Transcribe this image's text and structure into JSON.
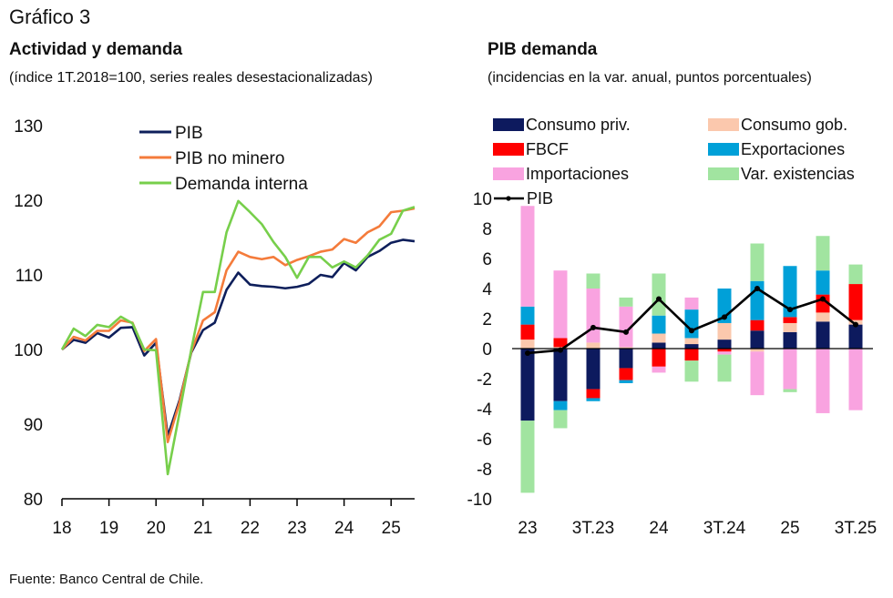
{
  "figure_label": "Gráfico 3",
  "source": "Fuente: Banco Central de Chile.",
  "chart_data": [
    {
      "type": "line",
      "title": "Actividad y demanda",
      "subtitle": "(índice 1T.2018=100, series reales desestacionalizadas)",
      "xlabel": "",
      "ylabel": "",
      "ylim": [
        80,
        130
      ],
      "yticks": [
        80,
        90,
        100,
        110,
        120,
        130
      ],
      "xticks": [
        "18",
        "19",
        "20",
        "21",
        "22",
        "23",
        "24",
        "25"
      ],
      "x_start": "1T.2018",
      "frequency": "quarterly",
      "legend_position": "top-center",
      "grid": false,
      "series": [
        {
          "name": "PIB",
          "color": "#0e1f5b",
          "values": [
            100.0,
            101.3,
            100.9,
            102.2,
            101.6,
            102.9,
            103.0,
            99.2,
            100.9,
            88.4,
            93.2,
            99.6,
            102.6,
            103.6,
            108.0,
            110.3,
            108.7,
            108.5,
            108.4,
            108.2,
            108.4,
            108.8,
            110.0,
            109.7,
            111.6,
            110.6,
            112.4,
            113.2,
            114.3,
            114.7,
            114.5
          ]
        },
        {
          "name": "PIB no minero",
          "color": "#f47b3b",
          "values": [
            100.0,
            101.7,
            101.2,
            102.5,
            102.5,
            103.9,
            103.6,
            99.8,
            101.4,
            87.6,
            92.9,
            99.7,
            103.9,
            105.0,
            110.6,
            113.1,
            112.4,
            112.1,
            112.4,
            111.3,
            112.0,
            112.5,
            113.1,
            113.4,
            114.8,
            114.3,
            115.7,
            116.5,
            118.4,
            118.6,
            118.9
          ]
        },
        {
          "name": "Demanda interna",
          "color": "#77cf4b",
          "values": [
            100.0,
            102.8,
            101.8,
            103.3,
            103.0,
            104.4,
            103.5,
            100.0,
            99.9,
            83.3,
            91.5,
            100.0,
            107.7,
            107.7,
            115.7,
            119.9,
            118.4,
            116.8,
            114.4,
            112.4,
            109.6,
            112.4,
            112.4,
            111.0,
            111.8,
            111.0,
            112.6,
            114.7,
            115.5,
            118.6,
            119.1
          ]
        }
      ]
    },
    {
      "type": "bar",
      "stacked": true,
      "title": "PIB demanda",
      "subtitle": "(incidencias en la var. anual, puntos porcentuales)",
      "xlabel": "",
      "ylabel": "",
      "ylim": [
        -10,
        10
      ],
      "yticks": [
        -10,
        -8,
        -6,
        -4,
        -2,
        0,
        2,
        4,
        6,
        8,
        10
      ],
      "categories": [
        "1T.23",
        "2T.23",
        "3T.23",
        "4T.23",
        "1T.24",
        "2T.24",
        "3T.24",
        "4T.24",
        "1T.25",
        "2T.25",
        "3T.25"
      ],
      "xtick_labels": [
        "23",
        "",
        "3T.23",
        "",
        "24",
        "",
        "3T.24",
        "",
        "25",
        "",
        "3T.25"
      ],
      "legend_position": "top",
      "grid": false,
      "series": [
        {
          "name": "Consumo priv.",
          "color": "#0d1a5e",
          "values": [
            -4.8,
            -3.5,
            -2.7,
            -1.3,
            0.4,
            0.3,
            0.6,
            1.2,
            1.1,
            1.8,
            1.6
          ]
        },
        {
          "name": "Consumo gob.",
          "color": "#fbc8ad",
          "values": [
            0.6,
            0.1,
            0.4,
            0.1,
            0.6,
            0.4,
            1.1,
            -0.2,
            0.6,
            0.6,
            0.3
          ]
        },
        {
          "name": "FBCF",
          "color": "#ff0000",
          "values": [
            1.0,
            0.6,
            -0.6,
            -0.8,
            -1.2,
            -0.8,
            -0.2,
            0.7,
            0.4,
            1.2,
            2.4
          ]
        },
        {
          "name": "Exportaciones",
          "color": "#00a0d8",
          "values": [
            1.2,
            -0.6,
            -0.2,
            -0.2,
            1.2,
            1.9,
            2.3,
            2.6,
            3.4,
            1.6,
            0.0
          ]
        },
        {
          "name": "Importaciones",
          "color": "#f9a3e0",
          "values": [
            6.7,
            4.5,
            3.6,
            2.7,
            -0.4,
            0.8,
            -0.2,
            -2.9,
            -2.7,
            -4.3,
            -4.1
          ]
        },
        {
          "name": "Var. existencias",
          "color": "#a1e4a0",
          "values": [
            -4.8,
            -1.2,
            1.0,
            0.6,
            2.8,
            -1.4,
            -1.8,
            2.5,
            -0.2,
            2.3,
            1.3
          ]
        }
      ],
      "line_series": {
        "name": "PIB",
        "color": "#000000",
        "values": [
          -0.3,
          -0.1,
          1.4,
          1.1,
          3.3,
          1.2,
          2.1,
          4.0,
          2.6,
          3.3,
          1.6
        ]
      }
    }
  ]
}
